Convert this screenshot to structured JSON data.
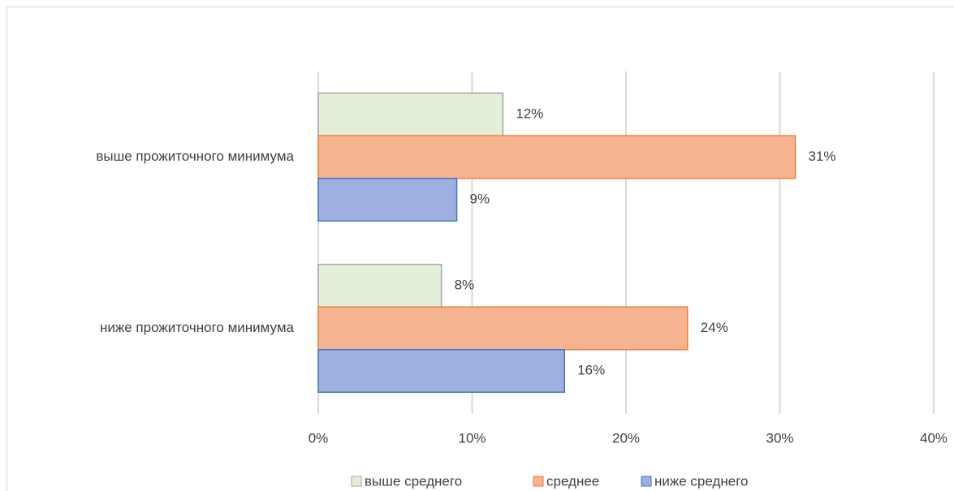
{
  "chart_data": {
    "type": "hbar",
    "categories": [
      "выше прожиточного минимума",
      "ниже прожиточного минимума"
    ],
    "series": [
      {
        "name": "выше среднего",
        "color": "#e2efd9",
        "border": "#a5a5a5",
        "values": [
          12,
          8
        ],
        "value_labels": [
          "12%",
          "8%"
        ]
      },
      {
        "name": "среднее",
        "color": "#f6b38f",
        "border": "#ed7d31",
        "values": [
          31,
          24
        ],
        "value_labels": [
          "31%",
          "24%"
        ]
      },
      {
        "name": "ниже среднего",
        "color": "#9db0e0",
        "border": "#4472c4",
        "values": [
          9,
          16
        ],
        "value_labels": [
          "9%",
          "16%"
        ]
      }
    ],
    "xlim": [
      0,
      40
    ],
    "xticks": [
      {
        "value": 0,
        "label": "0%"
      },
      {
        "value": 10,
        "label": "10%"
      },
      {
        "value": 20,
        "label": "20%"
      },
      {
        "value": 30,
        "label": "30%"
      },
      {
        "value": 40,
        "label": "40%"
      }
    ],
    "grid": true,
    "legend": "bottom"
  }
}
